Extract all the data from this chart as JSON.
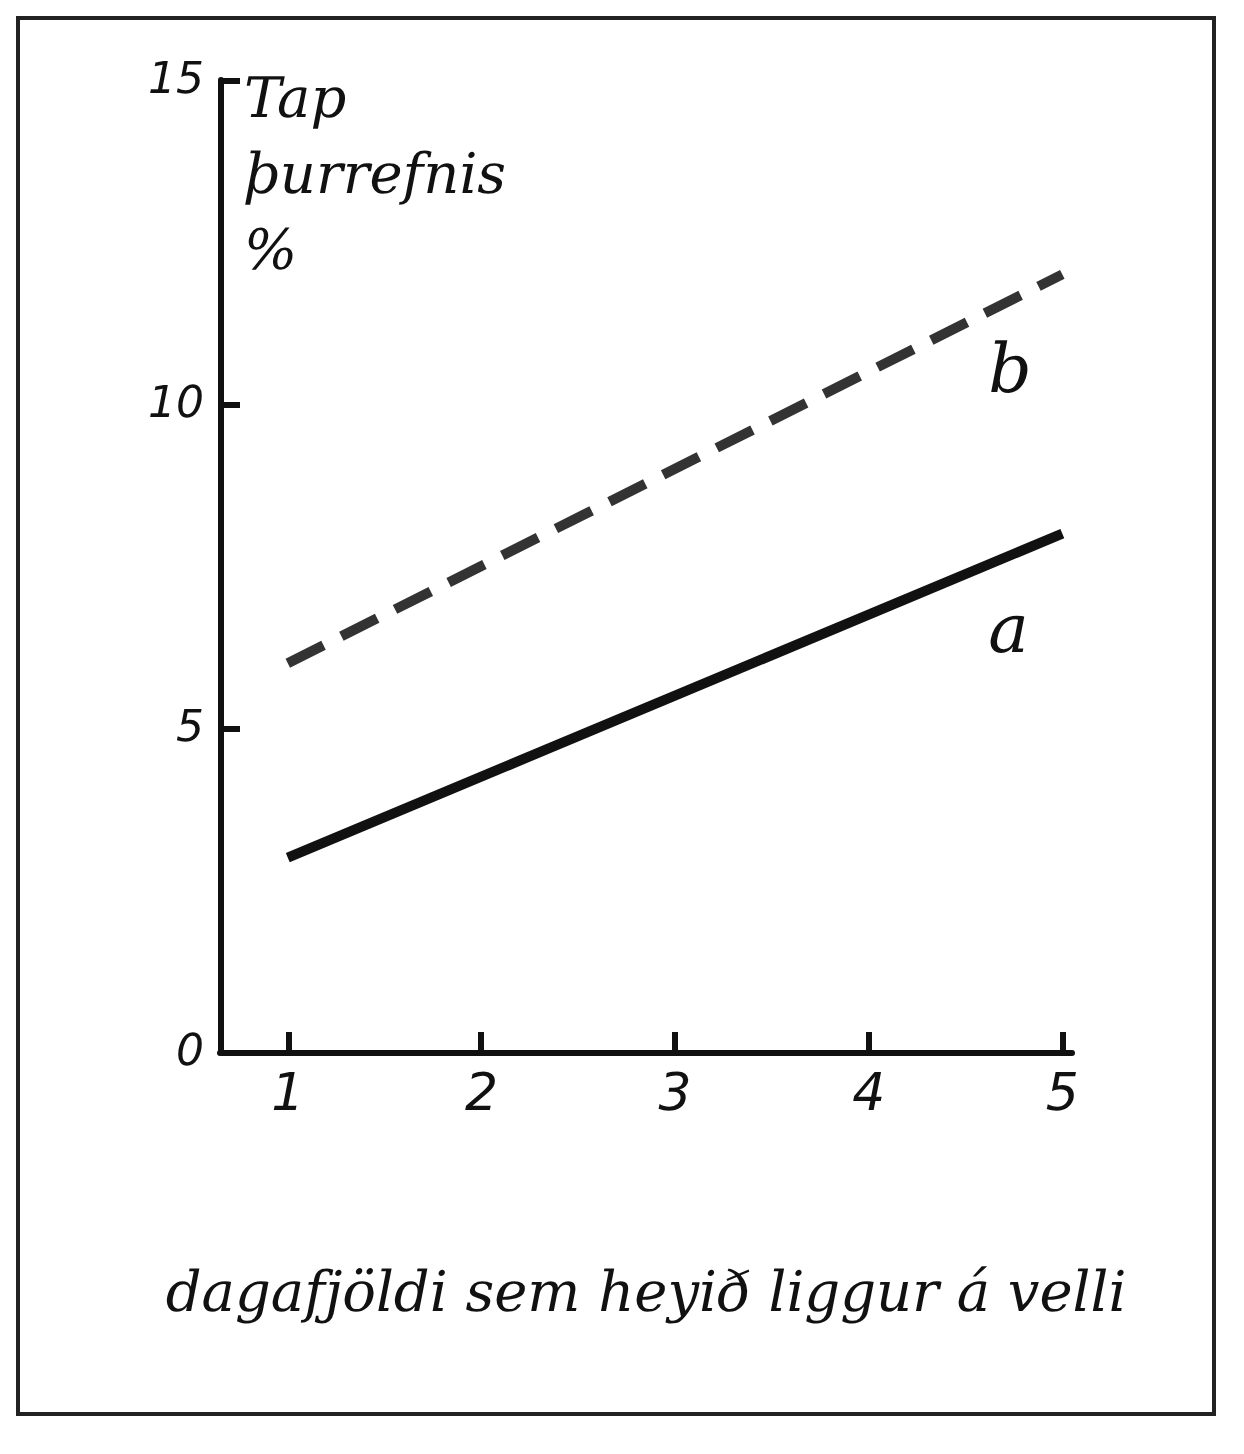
{
  "chart_data": {
    "type": "line",
    "xlabel": "dagafjöldi sem heyið liggur á velli",
    "ylabel": "Tap þurrefnis %",
    "x": [
      1,
      5
    ],
    "xlim": [
      0.65,
      5.05
    ],
    "ylim": [
      0,
      15
    ],
    "xticks": [
      1,
      2,
      3,
      4,
      5
    ],
    "yticks": [
      0,
      5,
      10,
      15
    ],
    "grid": false,
    "legend": false,
    "marker": "none",
    "series": [
      {
        "name": "b",
        "color": "#333333",
        "values": [
          6,
          12
        ],
        "line_style": "dashed"
      },
      {
        "name": "a",
        "color": "#111111",
        "values": [
          3,
          8
        ],
        "line_style": "solid"
      }
    ]
  }
}
